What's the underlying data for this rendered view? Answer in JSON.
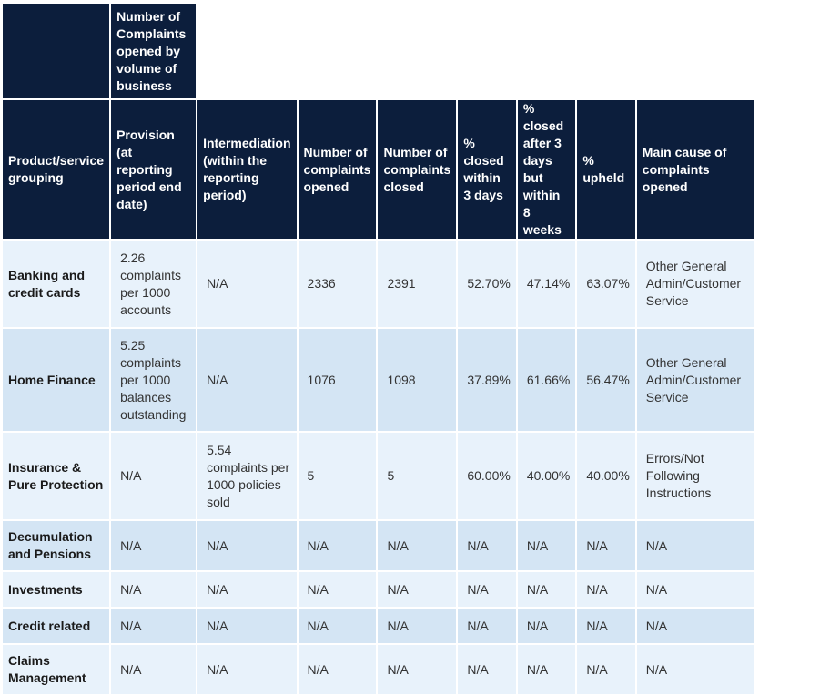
{
  "group_header": "Number of Complaints opened by volume of business",
  "columns": [
    "Product/service grouping",
    "Provision (at reporting period end date)",
    "Intermediation (within the reporting period)",
    "Number of complaints opened",
    "Number of complaints closed",
    "% closed within 3 days",
    "% closed after 3 days but within 8 weeks",
    "% upheld",
    "Main cause of complaints opened"
  ],
  "rows": [
    {
      "product": "Banking and credit cards",
      "provision": "2.26 complaints per 1000 accounts",
      "intermediation": "N/A",
      "opened": "2336",
      "closed": "2391",
      "within3": "52.70%",
      "within8w": "47.14%",
      "upheld": "63.07%",
      "cause": "Other General Admin/Customer Service"
    },
    {
      "product": "Home Finance",
      "provision": "5.25 complaints per 1000 balances outstanding",
      "intermediation": "N/A",
      "opened": "1076",
      "closed": "1098",
      "within3": "37.89%",
      "within8w": "61.66%",
      "upheld": "56.47%",
      "cause": "Other General Admin/Customer Service"
    },
    {
      "product": "Insurance & Pure Protection",
      "provision": "N/A",
      "intermediation": "5.54 complaints per 1000 policies sold",
      "opened": "5",
      "closed": "5",
      "within3": "60.00%",
      "within8w": "40.00%",
      "upheld": "40.00%",
      "cause": "Errors/Not Following Instructions"
    },
    {
      "product": "Decumulation and Pensions",
      "provision": "N/A",
      "intermediation": "N/A",
      "opened": "N/A",
      "closed": "N/A",
      "within3": "N/A",
      "within8w": "N/A",
      "upheld": "N/A",
      "cause": "N/A"
    },
    {
      "product": "Investments",
      "provision": "N/A",
      "intermediation": "N/A",
      "opened": "N/A",
      "closed": "N/A",
      "within3": "N/A",
      "within8w": "N/A",
      "upheld": "N/A",
      "cause": "N/A"
    },
    {
      "product": "Credit related",
      "provision": "N/A",
      "intermediation": "N/A",
      "opened": "N/A",
      "closed": "N/A",
      "within3": "N/A",
      "within8w": "N/A",
      "upheld": "N/A",
      "cause": "N/A"
    },
    {
      "product": "Claims Management",
      "provision": "N/A",
      "intermediation": "N/A",
      "opened": "N/A",
      "closed": "N/A",
      "within3": "N/A",
      "within8w": "N/A",
      "upheld": "N/A",
      "cause": "N/A"
    }
  ]
}
